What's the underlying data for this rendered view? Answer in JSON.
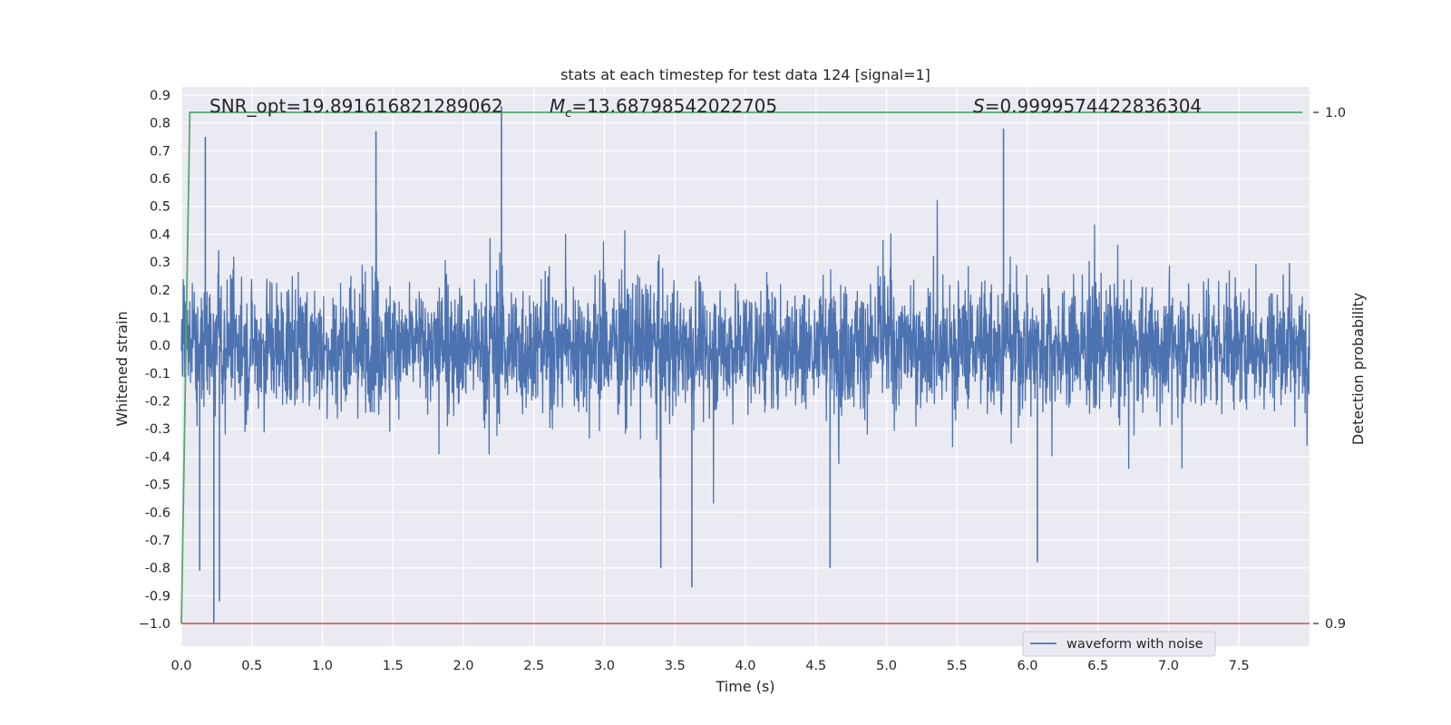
{
  "chart_data": {
    "type": "line",
    "title": "stats at each timestep for test data 124 [signal=1]",
    "xlabel": "Time (s)",
    "ylabel": "Whitened strain",
    "y2label": "Detection probability",
    "xlim": [
      0.0,
      8.0
    ],
    "ylim": [
      -1.09,
      0.95
    ],
    "y2lim": [
      0.9,
      1.0
    ],
    "xticks": [
      "0.0",
      "0.5",
      "1.0",
      "1.5",
      "2.0",
      "2.5",
      "3.0",
      "3.5",
      "4.0",
      "4.5",
      "5.0",
      "5.5",
      "6.0",
      "6.5",
      "7.0",
      "7.5"
    ],
    "xtick_values": [
      0.0,
      0.5,
      1.0,
      1.5,
      2.0,
      2.5,
      3.0,
      3.5,
      4.0,
      4.5,
      5.0,
      5.5,
      6.0,
      6.5,
      7.0,
      7.5
    ],
    "yticks": [
      "0.9",
      "0.8",
      "0.7",
      "0.6",
      "0.5",
      "0.4",
      "0.3",
      "0.2",
      "0.1",
      "0.0",
      "-0.1",
      "-0.2",
      "-0.3",
      "-0.4",
      "-0.5",
      "-0.6",
      "-0.7",
      "-0.8",
      "-0.9",
      "−1.0"
    ],
    "ytick_values": [
      0.9,
      0.8,
      0.7,
      0.6,
      0.5,
      0.4,
      0.3,
      0.2,
      0.1,
      0.0,
      -0.1,
      -0.2,
      -0.3,
      -0.4,
      -0.5,
      -0.6,
      -0.7,
      -0.8,
      -0.9,
      -1.0
    ],
    "y2ticks": [
      "1.0",
      "0.9"
    ],
    "y2tick_values": [
      1.0,
      0.9
    ],
    "grid": true,
    "legend": {
      "position": "lower-right",
      "entries": [
        "waveform with noise"
      ]
    },
    "annotations": {
      "snr": "SNR_opt=19.891616821289062",
      "mc_symbol": "M",
      "mc_sub": "c",
      "mc_value": "=13.68798542022705",
      "s_symbol": "S",
      "s_value": "=0.9999574422836304"
    },
    "series": [
      {
        "name": "waveform with noise",
        "axis": "left",
        "color": "#4c72b0",
        "description": "whitened strain noise, amplitude envelope roughly -0.5 to 0.6",
        "x_range": [
          0.0,
          8.0
        ],
        "notable_extremes": [
          {
            "x": 0.23,
            "y": -1.0
          },
          {
            "x": 0.27,
            "y": -0.92
          },
          {
            "x": 0.13,
            "y": -0.81
          },
          {
            "x": 2.27,
            "y": 0.86
          },
          {
            "x": 3.62,
            "y": -0.87
          },
          {
            "x": 4.6,
            "y": -0.8
          },
          {
            "x": 3.4,
            "y": -0.8
          },
          {
            "x": 1.38,
            "y": 0.77
          },
          {
            "x": 5.83,
            "y": 0.78
          },
          {
            "x": 6.07,
            "y": -0.78
          },
          {
            "x": 0.17,
            "y": 0.75
          }
        ]
      },
      {
        "name": "detection probability",
        "axis": "right",
        "color": "#55a868",
        "x": [
          0.0,
          0.06,
          7.95
        ],
        "y": [
          0.9,
          1.0,
          1.0
        ]
      },
      {
        "name": "threshold",
        "axis": "left",
        "color": "#c44e52",
        "x": [
          0.0,
          8.0
        ],
        "y": [
          -1.0,
          -1.0
        ]
      }
    ]
  }
}
